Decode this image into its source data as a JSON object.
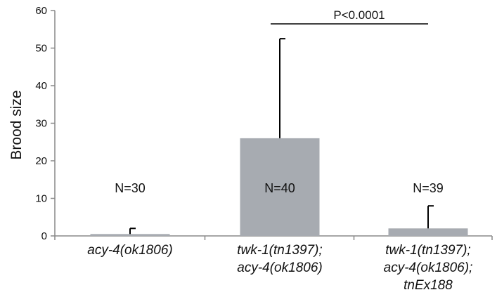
{
  "chart_data": {
    "type": "bar",
    "title": "",
    "xlabel": "",
    "ylabel": "Brood size",
    "ylim": [
      0,
      60
    ],
    "yticks": [
      0,
      10,
      20,
      30,
      40,
      50,
      60
    ],
    "grid": false,
    "legend": "none",
    "bar_color": "#a7abb1",
    "categories": [
      [
        "acy-4(ok1806)"
      ],
      [
        "twk-1(tn1397);",
        "acy-4(ok1806)"
      ],
      [
        "twk-1(tn1397);",
        "acy-4(ok1806);",
        "tnEx188"
      ]
    ],
    "values": [
      0.5,
      26,
      2
    ],
    "error_upper": [
      2,
      52.5,
      8
    ],
    "annotations": [
      "N=30",
      "N=40",
      "N=39"
    ],
    "significance": {
      "label": "P<0.0001",
      "between": [
        1,
        2
      ]
    }
  }
}
